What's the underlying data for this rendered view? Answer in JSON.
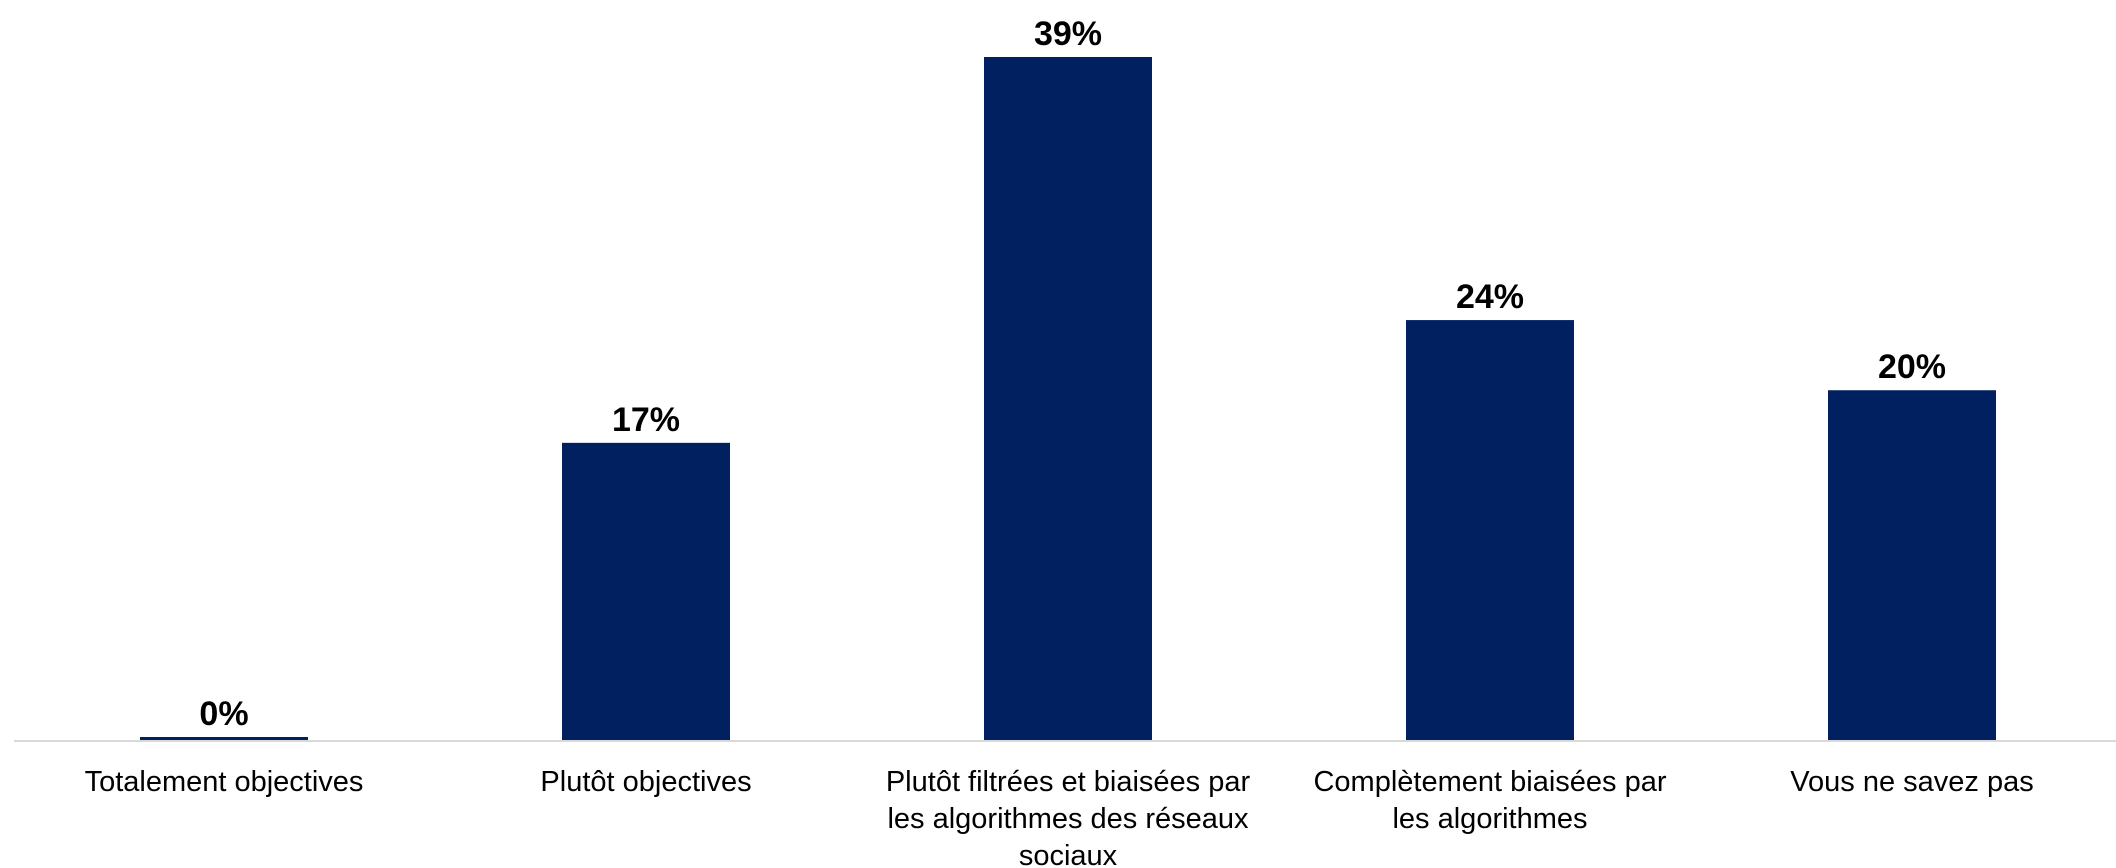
{
  "chart_data": {
    "type": "bar",
    "categories": [
      [
        "Totalement objectives"
      ],
      [
        "Plutôt objectives"
      ],
      [
        "Plutôt filtrées et biaisées par",
        "les algorithmes des réseaux",
        "sociaux"
      ],
      [
        "Complètement biaisées par",
        "les algorithmes"
      ],
      [
        "Vous ne savez pas"
      ]
    ],
    "values": [
      0,
      17,
      39,
      24,
      20
    ],
    "value_labels": [
      "0%",
      "17%",
      "39%",
      "24%",
      "20%"
    ],
    "unit": "%",
    "ylim": [
      0,
      39
    ],
    "grid": false,
    "legend": "none",
    "bar_color": "#002060",
    "axis_color": "#d9d9d9",
    "label_color": "#000000"
  }
}
